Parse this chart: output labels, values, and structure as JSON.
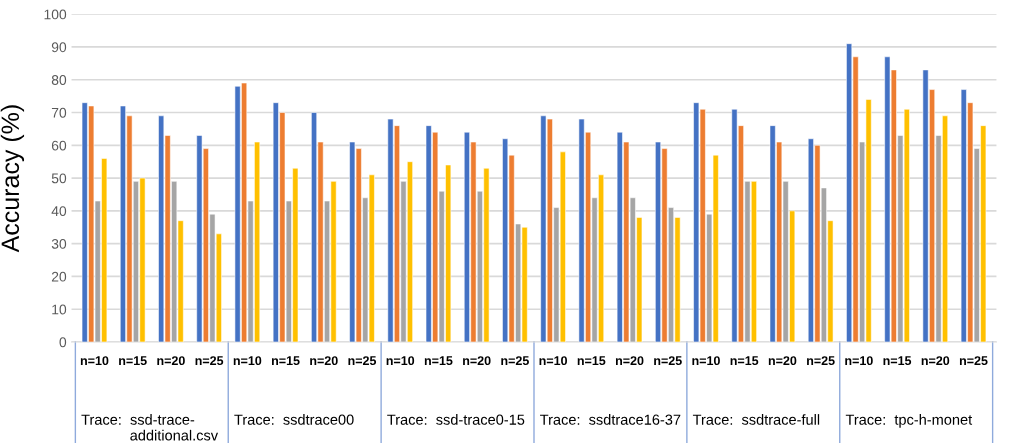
{
  "chart_data": {
    "type": "bar",
    "ylabel": "Accuracy (%)",
    "categories": [
      "n=10",
      "n=15",
      "n=20",
      "n=25",
      "n=10",
      "n=15",
      "n=20",
      "n=25",
      "n=10",
      "n=15",
      "n=20",
      "n=25",
      "n=10",
      "n=15",
      "n=20",
      "n=25",
      "n=10",
      "n=15",
      "n=20",
      "n=25",
      "n=10",
      "n=15",
      "n=20",
      "n=25"
    ],
    "series": [
      {
        "color": "#4472c4",
        "values": [
          73,
          72,
          69,
          63,
          78,
          73,
          70,
          61,
          68,
          66,
          64,
          62,
          69,
          68,
          64,
          61,
          73,
          71,
          66,
          62,
          91,
          87,
          83,
          77
        ]
      },
      {
        "color": "#ed7d31",
        "values": [
          72,
          69,
          63,
          59,
          79,
          70,
          61,
          59,
          66,
          64,
          61,
          57,
          68,
          64,
          61,
          59,
          71,
          66,
          61,
          60,
          87,
          83,
          77,
          73
        ]
      },
      {
        "color": "#a5a5a5",
        "values": [
          43,
          49,
          49,
          39,
          43,
          43,
          43,
          44,
          49,
          46,
          46,
          36,
          41,
          44,
          44,
          41,
          39,
          49,
          49,
          47,
          61,
          63,
          63,
          59
        ]
      },
      {
        "color": "#ffc000",
        "values": [
          56,
          50,
          37,
          33,
          61,
          53,
          49,
          51,
          55,
          54,
          53,
          35,
          58,
          51,
          38,
          38,
          57,
          49,
          40,
          37,
          74,
          71,
          69,
          66
        ]
      }
    ],
    "annotations": [
      "Trace:  ssd-trace-\n            additional.csv",
      "Trace:  ssdtrace00",
      "Trace:  ssd-trace0-15",
      "Trace:  ssdtrace16-37",
      "Trace:  ssdtrace-full",
      "Trace:  tpc-h-monet"
    ],
    "ylim": [
      0,
      100
    ],
    "yticks": [
      0,
      10,
      20,
      30,
      40,
      50,
      60,
      70,
      80,
      90,
      100
    ],
    "grid": "y",
    "legend": false
  }
}
